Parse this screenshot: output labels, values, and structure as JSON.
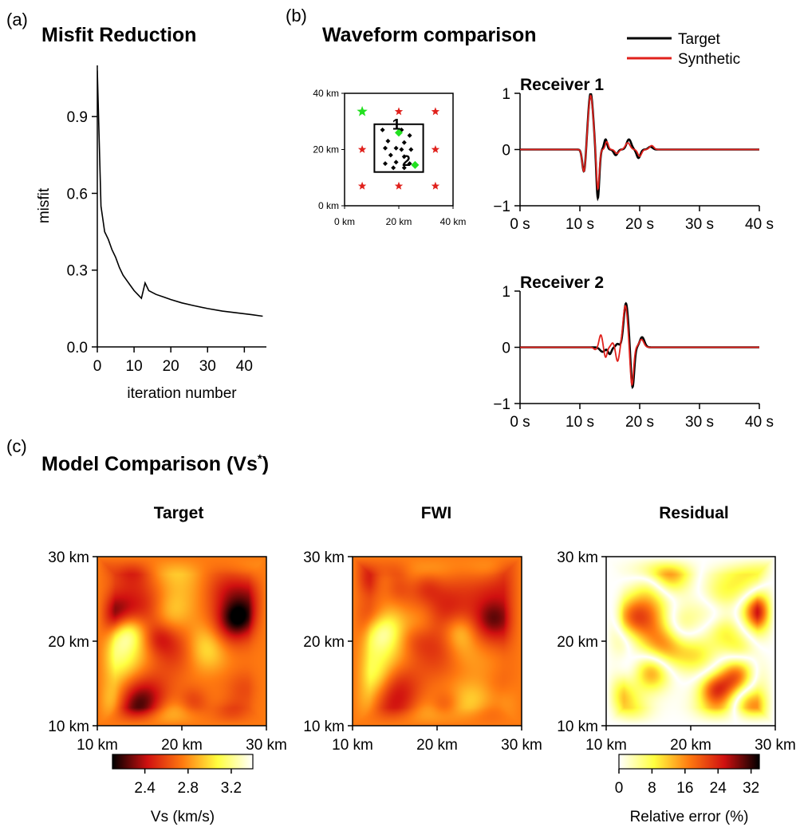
{
  "panels": {
    "a": {
      "letter": "(a)",
      "title": "Misfit Reduction",
      "chart_data": {
        "type": "line",
        "xlabel": "iteration number",
        "ylabel": "misfit",
        "xlim": [
          0,
          46
        ],
        "ylim": [
          0,
          1.1
        ],
        "xticks": [
          0,
          10,
          20,
          30,
          40
        ],
        "xtick_labels": [
          "0",
          "10",
          "20",
          "30",
          "40"
        ],
        "yticks": [
          0,
          0.3,
          0.6,
          0.9
        ],
        "ytick_labels": [
          "0.0",
          "0.3",
          "0.6",
          "0.9"
        ],
        "x": [
          0,
          1,
          2,
          3,
          4,
          5,
          6,
          7,
          8,
          9,
          10,
          11,
          12,
          13,
          14,
          16,
          18,
          20,
          23,
          26,
          30,
          34,
          38,
          42,
          45
        ],
        "y": [
          1.08,
          0.55,
          0.45,
          0.42,
          0.38,
          0.35,
          0.31,
          0.28,
          0.26,
          0.24,
          0.22,
          0.205,
          0.19,
          0.25,
          0.22,
          0.205,
          0.195,
          0.185,
          0.172,
          0.162,
          0.15,
          0.14,
          0.133,
          0.126,
          0.12
        ]
      }
    },
    "b": {
      "letter": "(b)",
      "title": "Waveform comparison",
      "legend": [
        {
          "label": "Target",
          "color": "#000000"
        },
        {
          "label": "Synthetic",
          "color": "#e0211c"
        }
      ],
      "map": {
        "type": "scatter",
        "xlim": [
          0,
          40
        ],
        "ylim": [
          0,
          40
        ],
        "xtick_labels": [
          "0 km",
          "20 km",
          "40 km"
        ],
        "ytick_labels": [
          "0 km",
          "20 km",
          "40 km"
        ],
        "box": {
          "x0": 11,
          "x1": 29,
          "y0": 12,
          "y1": 29
        },
        "sources_red": [
          [
            20,
            33.5
          ],
          [
            33.5,
            33.5
          ],
          [
            6.5,
            20
          ],
          [
            33.5,
            20
          ],
          [
            6.5,
            7
          ],
          [
            20,
            7
          ],
          [
            33.5,
            7
          ]
        ],
        "source_green": [
          6.5,
          33.5
        ],
        "stations_black": [
          [
            14,
            27
          ],
          [
            21,
            27
          ],
          [
            24,
            25
          ],
          [
            16,
            23
          ],
          [
            22,
            22.5
          ],
          [
            15,
            20.5
          ],
          [
            19,
            20.5
          ],
          [
            21,
            20
          ],
          [
            24.5,
            20
          ],
          [
            17,
            18
          ],
          [
            22,
            17.5
          ],
          [
            15,
            15
          ],
          [
            19,
            15.5
          ],
          [
            24,
            15
          ],
          [
            18,
            13.5
          ],
          [
            22,
            13.5
          ]
        ],
        "receivers_green": [
          {
            "x": 20,
            "y": 26,
            "label": "1"
          },
          {
            "x": 26,
            "y": 14.5,
            "label": "2"
          }
        ],
        "marker_colors": {
          "source": "#e0211c",
          "active": "#22e020",
          "station": "#000000"
        }
      },
      "receivers": [
        {
          "title": "Receiver 1",
          "chart_data": {
            "type": "line",
            "xlim": [
              0,
              40
            ],
            "ylim": [
              -1,
              1
            ],
            "xticks": [
              0,
              10,
              20,
              30,
              40
            ],
            "xtick_labels": [
              "0 s",
              "10 s",
              "20 s",
              "30 s",
              "40 s"
            ],
            "yticks": [
              -1,
              0,
              1
            ],
            "ytick_labels": [
              "−1",
              "0",
              "1"
            ],
            "series": [
              {
                "name": "Target",
                "color": "#000000",
                "wavelets": [
                  [
                    11.8,
                    1.0,
                    0.6
                  ],
                  [
                    10.7,
                    -0.42,
                    0.4
                  ],
                  [
                    13.0,
                    -0.88,
                    0.35
                  ],
                  [
                    14.3,
                    0.18,
                    0.35
                  ],
                  [
                    16.0,
                    -0.1,
                    0.45
                  ],
                  [
                    18.2,
                    0.18,
                    0.55
                  ],
                  [
                    19.8,
                    -0.15,
                    0.45
                  ],
                  [
                    21.8,
                    0.05,
                    0.5
                  ]
                ]
              },
              {
                "name": "Synthetic",
                "color": "#e0211c",
                "wavelets": [
                  [
                    11.8,
                    0.96,
                    0.6
                  ],
                  [
                    10.7,
                    -0.42,
                    0.4
                  ],
                  [
                    13.0,
                    -0.72,
                    0.35
                  ],
                  [
                    14.5,
                    0.14,
                    0.35
                  ],
                  [
                    16.2,
                    -0.07,
                    0.45
                  ],
                  [
                    18.0,
                    0.12,
                    0.55
                  ],
                  [
                    20.0,
                    -0.12,
                    0.45
                  ],
                  [
                    22.0,
                    0.07,
                    0.5
                  ]
                ]
              }
            ]
          }
        },
        {
          "title": "Receiver 2",
          "chart_data": {
            "type": "line",
            "xlim": [
              0,
              40
            ],
            "ylim": [
              -1,
              1
            ],
            "xticks": [
              0,
              10,
              20,
              30,
              40
            ],
            "xtick_labels": [
              "0 s",
              "10 s",
              "20 s",
              "30 s",
              "40 s"
            ],
            "yticks": [
              -1,
              0,
              1
            ],
            "ytick_labels": [
              "−1",
              "0",
              "1"
            ],
            "series": [
              {
                "name": "Target",
                "color": "#000000",
                "wavelets": [
                  [
                    13.8,
                    -0.08,
                    0.6
                  ],
                  [
                    15.0,
                    -0.12,
                    0.4
                  ],
                  [
                    16.3,
                    0.06,
                    0.4
                  ],
                  [
                    17.7,
                    0.78,
                    0.55
                  ],
                  [
                    18.8,
                    -0.72,
                    0.4
                  ],
                  [
                    20.4,
                    0.18,
                    0.55
                  ]
                ]
              },
              {
                "name": "Synthetic",
                "color": "#e0211c",
                "wavelets": [
                  [
                    12.6,
                    -0.04,
                    0.4
                  ],
                  [
                    13.5,
                    0.22,
                    0.4
                  ],
                  [
                    14.3,
                    -0.18,
                    0.35
                  ],
                  [
                    15.5,
                    0.08,
                    0.4
                  ],
                  [
                    16.3,
                    -0.25,
                    0.4
                  ],
                  [
                    17.6,
                    0.74,
                    0.55
                  ],
                  [
                    18.7,
                    -0.68,
                    0.4
                  ],
                  [
                    20.3,
                    0.14,
                    0.55
                  ]
                ]
              }
            ]
          }
        }
      ]
    },
    "c": {
      "letter": "(c)",
      "title_main": "Model Comparison (Vs",
      "title_sup": "*",
      "title_close": ")",
      "maps": [
        {
          "title": "Target",
          "kind": "vs",
          "seed": 7,
          "blobs": 42
        },
        {
          "title": "FWI",
          "kind": "vs",
          "seed": 7,
          "blobs": 42
        },
        {
          "title": "Residual",
          "kind": "err",
          "seed": 19,
          "blobs": 46
        }
      ],
      "map_xtick_labels": [
        "10 km",
        "20 km",
        "30 km"
      ],
      "map_ytick_labels": [
        "10 km",
        "20 km",
        "30 km"
      ],
      "colorbars": [
        {
          "label": "Vs (km/s)",
          "tick_labels": [
            "2.4",
            "2.8",
            "3.2"
          ],
          "range": [
            2.1,
            3.4
          ],
          "ticks": [
            2.4,
            2.8,
            3.2
          ]
        },
        {
          "label": "Relative error (%)",
          "tick_labels": [
            "0",
            "8",
            "16",
            "24",
            "32"
          ],
          "range": [
            0,
            34
          ],
          "ticks": [
            0,
            8,
            16,
            24,
            32
          ]
        }
      ]
    }
  }
}
